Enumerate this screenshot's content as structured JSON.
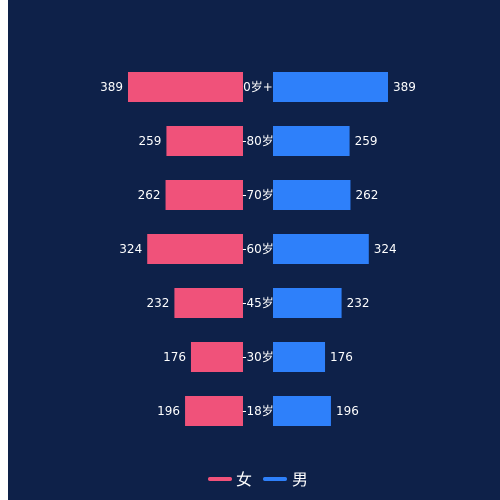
{
  "chart_data": {
    "type": "bar",
    "orientation": "horizontal-butterfly",
    "categories": [
      "0岁+",
      "-80岁",
      "-70岁",
      "-60岁",
      "-45岁",
      "-30岁",
      "-18岁"
    ],
    "series": [
      {
        "name": "女",
        "values": [
          389,
          259,
          262,
          324,
          232,
          176,
          196
        ],
        "color": "#f0527a"
      },
      {
        "name": "男",
        "values": [
          389,
          259,
          262,
          324,
          232,
          176,
          196
        ],
        "color": "#2e80fa"
      }
    ],
    "legend_placement": "bottom-center",
    "grid": false,
    "background": "#0e2149"
  }
}
